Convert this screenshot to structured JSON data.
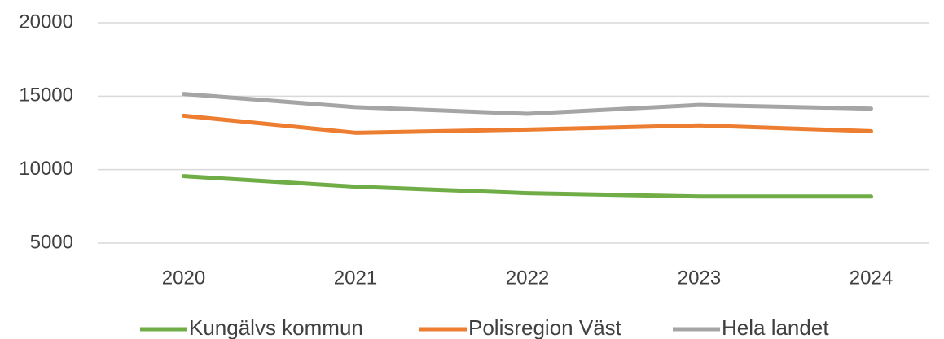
{
  "chart_data": {
    "type": "line",
    "categories": [
      "2020",
      "2021",
      "2022",
      "2023",
      "2024"
    ],
    "series": [
      {
        "name": "Kungälvs kommun",
        "color": "#70ad47",
        "values": [
          9560,
          8840,
          8400,
          8170,
          8170
        ]
      },
      {
        "name": "Polisregion Väst",
        "color": "#ed7d31",
        "values": [
          13670,
          12510,
          12730,
          13010,
          12620
        ]
      },
      {
        "name": "Hela landet",
        "color": "#a5a5a5",
        "values": [
          15150,
          14250,
          13800,
          14400,
          14150
        ]
      }
    ],
    "ylim": [
      5000,
      20000
    ],
    "yticks": [
      5000,
      10000,
      15000,
      20000
    ],
    "grid": true,
    "legend": "bottom"
  }
}
